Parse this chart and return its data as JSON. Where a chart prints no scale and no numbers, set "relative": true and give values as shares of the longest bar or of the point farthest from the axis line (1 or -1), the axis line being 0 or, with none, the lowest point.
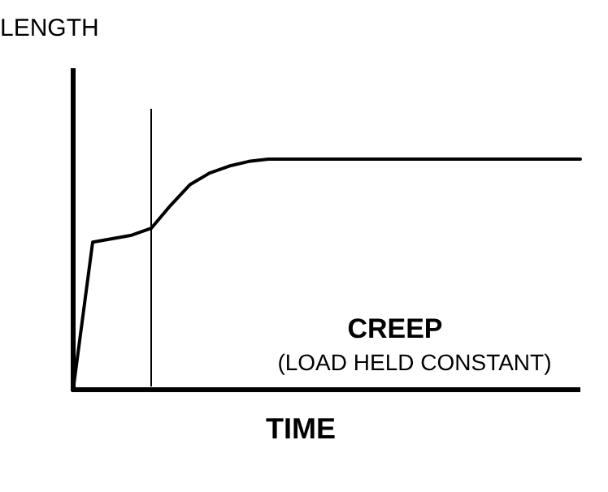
{
  "chart_data": {
    "type": "line",
    "relative": true,
    "xlabel": "TIME",
    "ylabel": "LENGTH",
    "annotations": [
      "CREEP",
      "(LOAD HELD CONSTANT)"
    ],
    "categories": [
      null,
      null,
      null,
      null,
      null,
      null,
      null,
      null,
      null,
      null,
      null,
      null,
      null,
      null,
      null,
      null,
      null,
      null,
      null,
      null,
      null,
      null,
      null,
      null,
      null,
      null,
      null
    ],
    "series": [
      {
        "color": "#000000",
        "values": [
          0,
          0.64,
          0.655,
          0.67,
          0.7,
          0.8,
          0.89,
          0.94,
          0.97,
          0.99,
          1,
          1,
          1,
          1,
          1,
          1,
          1,
          1,
          1,
          1,
          1,
          1,
          1,
          1,
          1,
          1,
          1
        ]
      }
    ],
    "marker": "none",
    "line_style": "solid"
  }
}
